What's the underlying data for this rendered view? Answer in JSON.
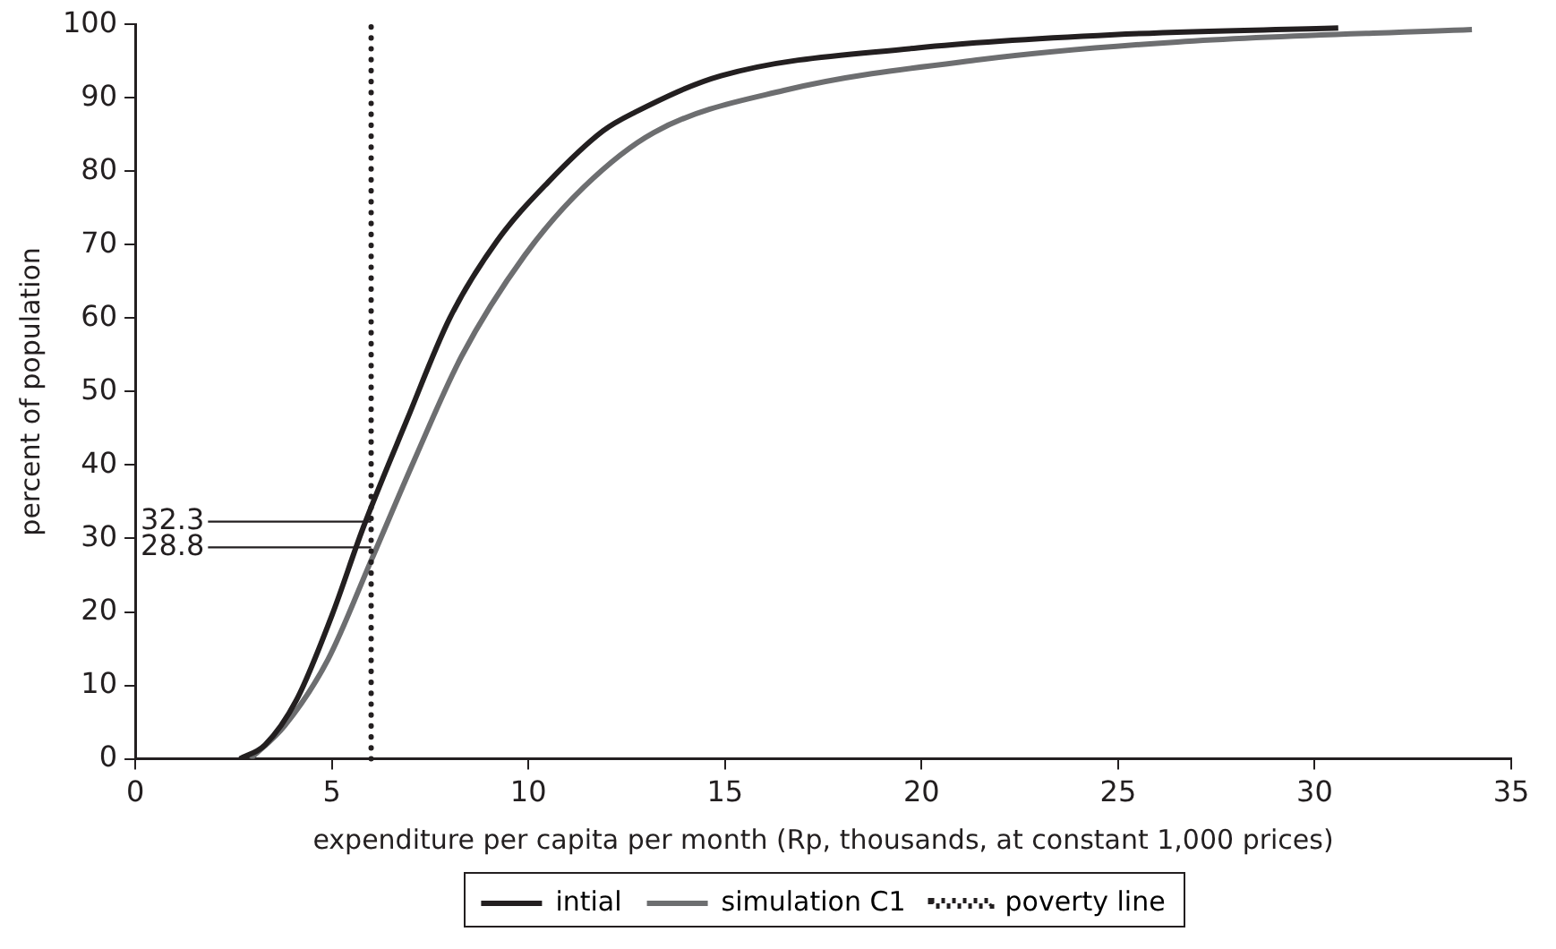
{
  "chart_data": {
    "type": "line",
    "xlabel": "expenditure per capita per month (Rp, thousands, at constant 1,000 prices)",
    "ylabel": "percent of population",
    "xlim": [
      0,
      35
    ],
    "xticks": [
      0,
      5,
      10,
      15,
      20,
      25,
      30,
      35
    ],
    "ylim": [
      0,
      100
    ],
    "yticks": [
      0,
      10,
      20,
      30,
      40,
      50,
      60,
      70,
      80,
      90,
      100
    ],
    "series": [
      {
        "name": "intial",
        "color": "#231f20",
        "x": [
          2.66,
          3.3,
          4.1,
          5.0,
          5.8,
          6.9,
          8.0,
          9.2,
          10.5,
          11.9,
          12.7,
          14.9,
          19.9,
          24.9,
          30.6
        ],
        "values": [
          0,
          1.9,
          8,
          19.5,
          31.5,
          46,
          60,
          70.5,
          78.5,
          85.5,
          88,
          93,
          96.8,
          98.6,
          99.5
        ]
      },
      {
        "name": "simulation C1",
        "color": "#6d6e70",
        "x": [
          2.93,
          3.8,
          4.9,
          6.0,
          7.1,
          8.3,
          9.9,
          11.4,
          13.2,
          16.5,
          21.5,
          26.5,
          34.0
        ],
        "values": [
          0,
          4.5,
          13.5,
          27,
          40.7,
          54.8,
          68.5,
          77.8,
          85.3,
          91,
          95.2,
          97.6,
          99.3
        ]
      }
    ],
    "ref_lines": [
      {
        "axis": "x",
        "value": 6,
        "label": "poverty line",
        "color": "#231f20",
        "line_style": "dotted"
      }
    ],
    "annotations": [
      {
        "text": "32.3",
        "x": 6,
        "y": 32.3
      },
      {
        "text": "28.8",
        "x": 6,
        "y": 28.8
      }
    ],
    "grid": false,
    "legend": "bottom",
    "marker": "none",
    "line_style": "solid"
  }
}
